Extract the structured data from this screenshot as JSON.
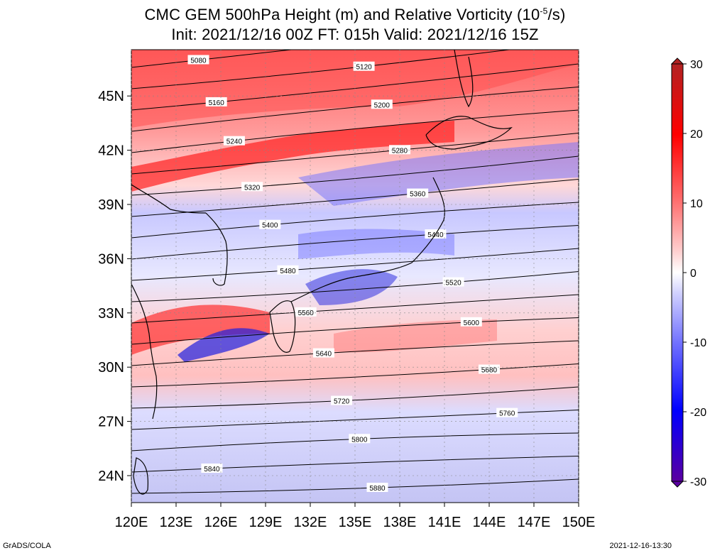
{
  "title": {
    "line1_prefix": "CMC GEM 500hPa Height (m) and Relative Vorticity (10",
    "line1_exp": "-5",
    "line1_suffix": "/s)",
    "line2": "Init: 2021/12/16 00Z  FT: 015h  Valid: 2021/12/16 15Z"
  },
  "footer": {
    "left": "GrADS/COLA",
    "right": "2021-12-16-13:30"
  },
  "axes": {
    "x_ticks": [
      "120E",
      "123E",
      "126E",
      "129E",
      "132E",
      "135E",
      "138E",
      "141E",
      "144E",
      "147E",
      "150E"
    ],
    "y_ticks": [
      "24N",
      "27N",
      "30N",
      "33N",
      "36N",
      "39N",
      "42N",
      "45N"
    ]
  },
  "colorbar": {
    "labels": [
      "30",
      "20",
      "10",
      "0",
      "-10",
      "-20",
      "-30"
    ],
    "colors": [
      "#6a00a8",
      "#2a00d0",
      "#0000ff",
      "#6a6aff",
      "#b0b0ff",
      "#f0f0ff",
      "#ffffff",
      "#ffe6e6",
      "#ffb0b0",
      "#ff6a6a",
      "#ff0000",
      "#d01010",
      "#b02020"
    ]
  },
  "contours": [
    {
      "label": "5080"
    },
    {
      "label": "5120"
    },
    {
      "label": "5160"
    },
    {
      "label": "5200"
    },
    {
      "label": "5240"
    },
    {
      "label": "5280"
    },
    {
      "label": "5320"
    },
    {
      "label": "5360"
    },
    {
      "label": "5400"
    },
    {
      "label": "5440"
    },
    {
      "label": "5480"
    },
    {
      "label": "5520"
    },
    {
      "label": "5560"
    },
    {
      "label": "5600"
    },
    {
      "label": "5640"
    },
    {
      "label": "5680"
    },
    {
      "label": "5720"
    },
    {
      "label": "5760"
    },
    {
      "label": "5800"
    },
    {
      "label": "5840"
    },
    {
      "label": "5880"
    }
  ]
}
